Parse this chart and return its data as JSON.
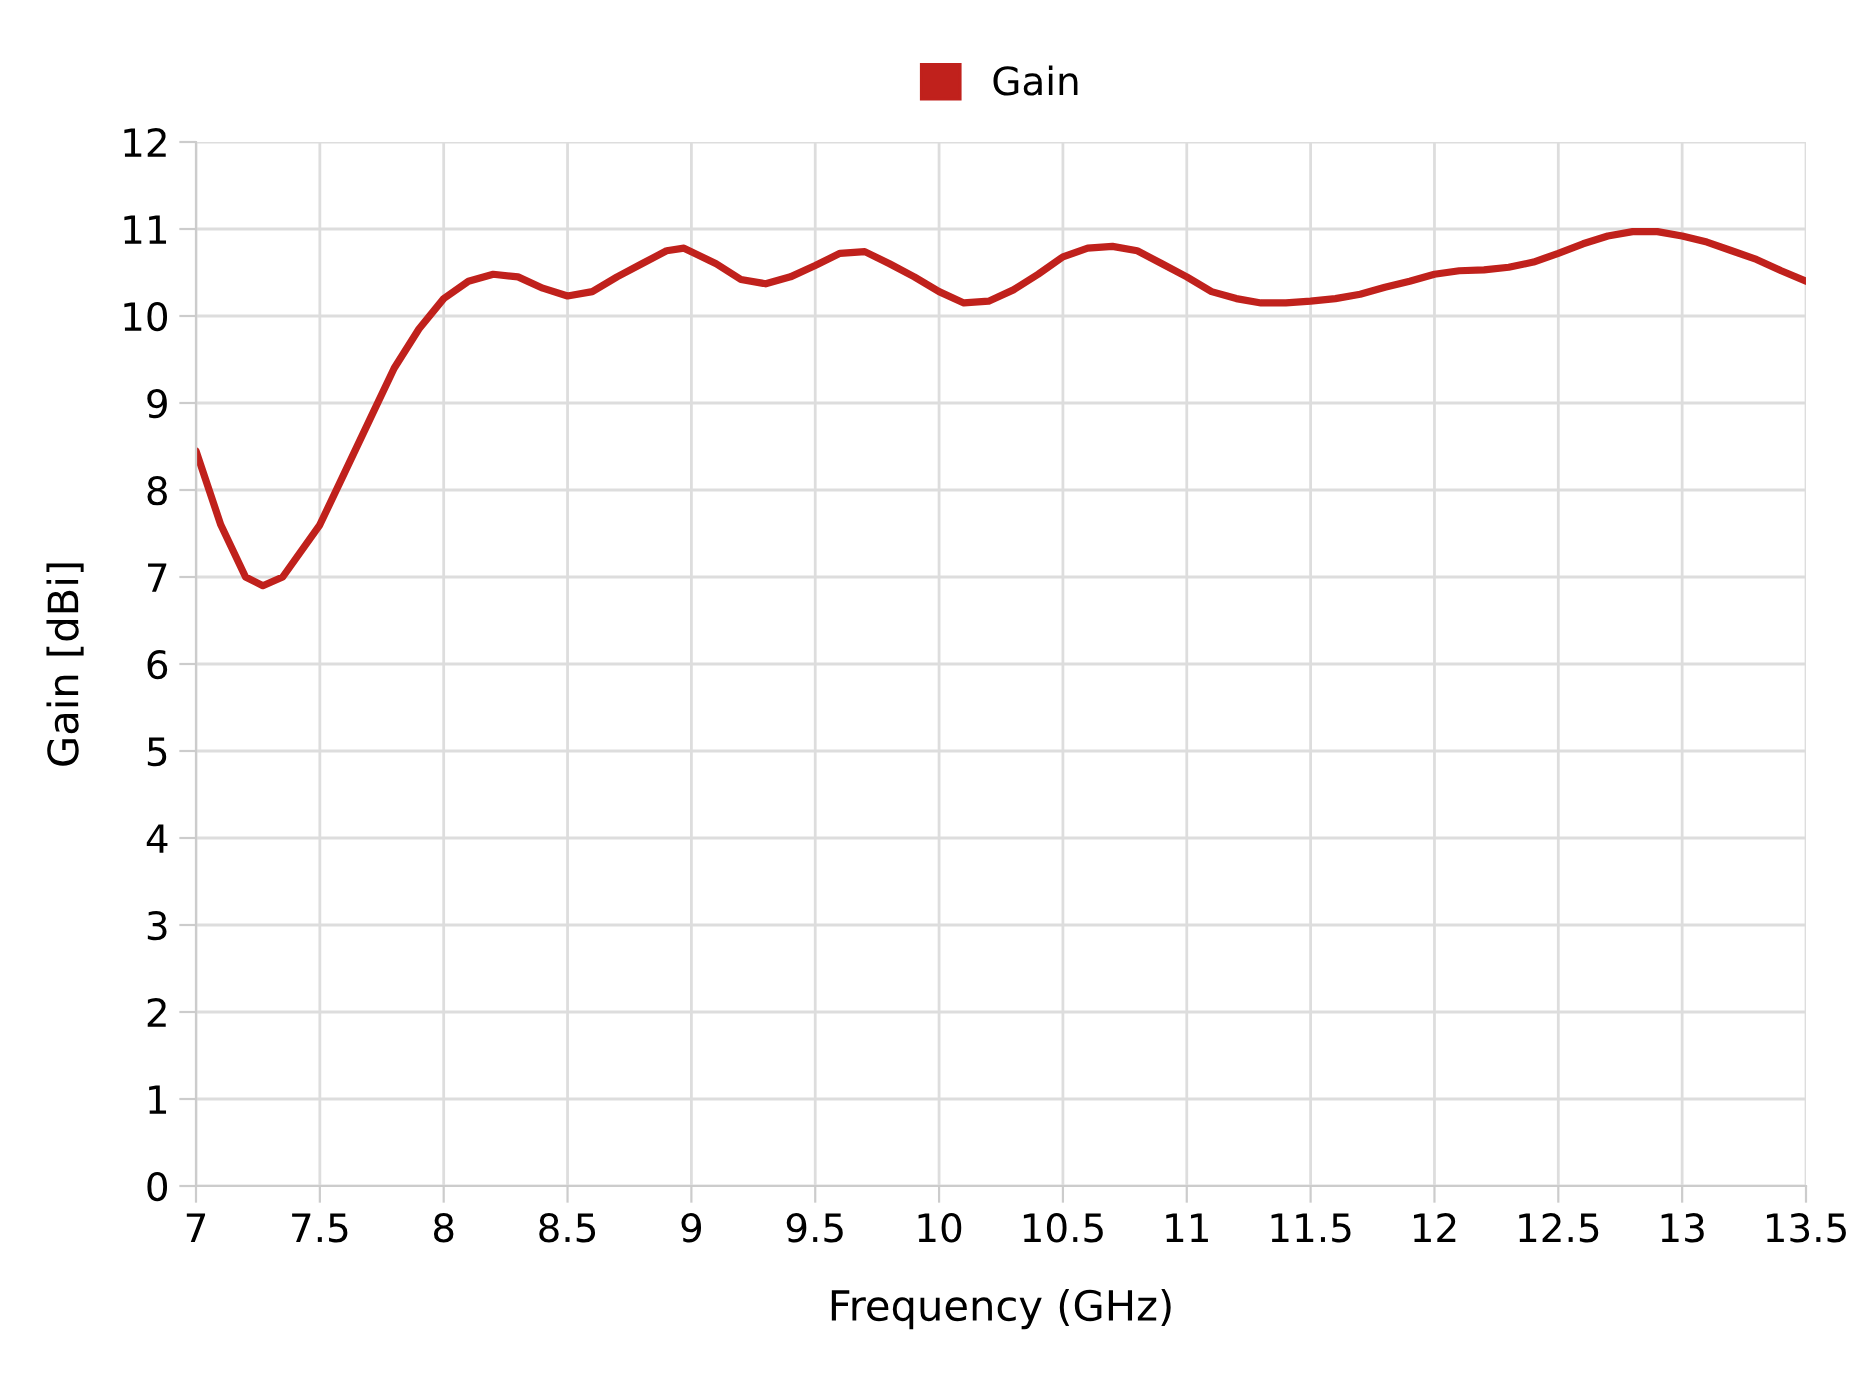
{
  "chart_data": {
    "type": "line",
    "xlabel": "Frequency (GHz)",
    "ylabel": "Gain [dBi]",
    "x": [
      7.0,
      7.1,
      7.2,
      7.27,
      7.35,
      7.5,
      7.6,
      7.7,
      7.8,
      7.9,
      8.0,
      8.1,
      8.2,
      8.3,
      8.4,
      8.5,
      8.6,
      8.7,
      8.8,
      8.9,
      8.97,
      9.1,
      9.2,
      9.3,
      9.4,
      9.5,
      9.6,
      9.7,
      9.8,
      9.9,
      10.0,
      10.1,
      10.2,
      10.3,
      10.4,
      10.5,
      10.6,
      10.7,
      10.8,
      10.9,
      11.0,
      11.1,
      11.2,
      11.3,
      11.4,
      11.5,
      11.6,
      11.7,
      11.8,
      11.9,
      12.0,
      12.1,
      12.2,
      12.3,
      12.4,
      12.5,
      12.6,
      12.7,
      12.8,
      12.9,
      13.0,
      13.1,
      13.2,
      13.3,
      13.4,
      13.5
    ],
    "series": [
      {
        "name": "Gain",
        "color": "#c0211c",
        "values": [
          8.45,
          7.6,
          7.0,
          6.9,
          7.0,
          7.6,
          8.2,
          8.8,
          9.4,
          9.85,
          10.2,
          10.4,
          10.48,
          10.45,
          10.32,
          10.23,
          10.28,
          10.45,
          10.6,
          10.75,
          10.78,
          10.6,
          10.42,
          10.37,
          10.45,
          10.58,
          10.72,
          10.74,
          10.6,
          10.45,
          10.28,
          10.15,
          10.17,
          10.3,
          10.48,
          10.68,
          10.78,
          10.8,
          10.75,
          10.6,
          10.45,
          10.28,
          10.2,
          10.15,
          10.15,
          10.17,
          10.2,
          10.25,
          10.33,
          10.4,
          10.48,
          10.52,
          10.53,
          10.56,
          10.62,
          10.72,
          10.83,
          10.92,
          10.97,
          10.97,
          10.92,
          10.85,
          10.75,
          10.65,
          10.52,
          10.4
        ]
      }
    ],
    "xlim": [
      7,
      13.5
    ],
    "xticks": [
      7,
      7.5,
      8,
      8.5,
      9,
      9.5,
      10,
      10.5,
      11,
      11.5,
      12,
      12.5,
      13,
      13.5
    ],
    "ylim": [
      0,
      12
    ],
    "yticks": [
      0,
      1,
      2,
      3,
      4,
      5,
      6,
      7,
      8,
      9,
      10,
      11,
      12
    ],
    "grid": true,
    "legend": "top",
    "marker": "none",
    "line_style": "solid"
  }
}
